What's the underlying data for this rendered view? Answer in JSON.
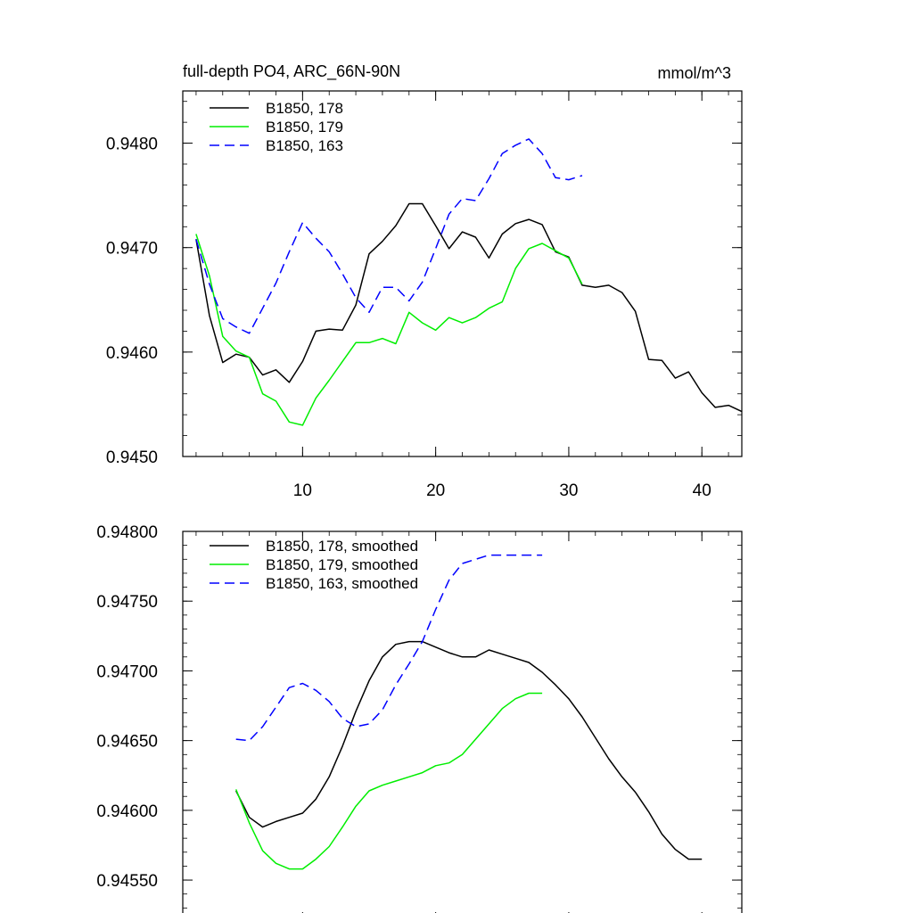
{
  "chart_data": [
    {
      "type": "line",
      "title": "full-depth PO4, ARC_66N-90N",
      "units": "mmol/m^3",
      "xlim": [
        1,
        43
      ],
      "ylim": [
        0.945,
        0.9485
      ],
      "x_ticks": [
        10,
        20,
        30,
        40
      ],
      "x_tick_labels": [
        "10",
        "20",
        "30",
        "40"
      ],
      "y_ticks": [
        0.945,
        0.946,
        0.947,
        0.948
      ],
      "y_tick_labels": [
        "0.9450",
        "0.9460",
        "0.9470",
        "0.9480"
      ],
      "x_minor_step": 2,
      "y_minor_step": 0.0002,
      "series": [
        {
          "name": "B1850, 178",
          "color": "#000000",
          "dash": "solid",
          "x": [
            2,
            3,
            4,
            5,
            6,
            7,
            8,
            9,
            10,
            11,
            12,
            13,
            14,
            15,
            16,
            17,
            18,
            19,
            20,
            21,
            22,
            23,
            24,
            25,
            26,
            27,
            28,
            29,
            30,
            31,
            32,
            33,
            34,
            35,
            36,
            37,
            38,
            39,
            40,
            41,
            42,
            43
          ],
          "values": [
            0.94708,
            0.94635,
            0.9459,
            0.94598,
            0.94595,
            0.94578,
            0.94583,
            0.94571,
            0.94591,
            0.9462,
            0.94622,
            0.94621,
            0.94645,
            0.94694,
            0.94706,
            0.94721,
            0.94742,
            0.94742,
            0.94721,
            0.94699,
            0.94715,
            0.9471,
            0.9469,
            0.94713,
            0.94723,
            0.94727,
            0.94722,
            0.94696,
            0.94691,
            0.94664,
            0.94662,
            0.94664,
            0.94657,
            0.94639,
            0.94593,
            0.94592,
            0.94575,
            0.94581,
            0.94561,
            0.94547,
            0.94549,
            0.94543
          ]
        },
        {
          "name": "B1850, 179",
          "color": "#00ee00",
          "dash": "solid",
          "x": [
            2,
            3,
            4,
            5,
            6,
            7,
            8,
            9,
            10,
            11,
            12,
            13,
            14,
            15,
            16,
            17,
            18,
            19,
            20,
            21,
            22,
            23,
            24,
            25,
            26,
            27,
            28,
            29,
            30,
            31
          ],
          "values": [
            0.94713,
            0.94673,
            0.94615,
            0.94601,
            0.94595,
            0.9456,
            0.94553,
            0.94533,
            0.9453,
            0.94556,
            0.94573,
            0.94591,
            0.94609,
            0.94609,
            0.94613,
            0.94608,
            0.94638,
            0.94628,
            0.94621,
            0.94633,
            0.94628,
            0.94633,
            0.94642,
            0.94648,
            0.9468,
            0.94699,
            0.94704,
            0.94697,
            0.9469,
            0.94665
          ]
        },
        {
          "name": "B1850, 163",
          "color": "#0000ff",
          "dash": "dashed",
          "x": [
            2,
            3,
            4,
            5,
            6,
            7,
            8,
            9,
            10,
            11,
            12,
            13,
            14,
            15,
            16,
            17,
            18,
            19,
            20,
            21,
            22,
            23,
            24,
            25,
            26,
            27,
            28,
            29,
            30,
            31
          ],
          "values": [
            0.94708,
            0.94665,
            0.94632,
            0.94624,
            0.94618,
            0.94642,
            0.94666,
            0.94696,
            0.94724,
            0.94709,
            0.94696,
            0.94675,
            0.94652,
            0.94638,
            0.94662,
            0.94662,
            0.94649,
            0.94667,
            0.94699,
            0.94732,
            0.94747,
            0.94745,
            0.94766,
            0.9479,
            0.94798,
            0.94804,
            0.9479,
            0.94767,
            0.94765,
            0.94769
          ]
        }
      ]
    },
    {
      "type": "line",
      "xlim": [
        1,
        43
      ],
      "ylim": [
        0.9452,
        0.948
      ],
      "x_ticks": [
        10,
        20,
        30,
        40
      ],
      "y_ticks": [
        0.9455,
        0.946,
        0.9465,
        0.947,
        0.9475,
        0.948
      ],
      "y_tick_labels": [
        "0.94550",
        "0.94600",
        "0.94650",
        "0.94700",
        "0.94750",
        "0.94800"
      ],
      "x_minor_step": 2,
      "y_minor_step": 0.0001,
      "series": [
        {
          "name": "B1850, 178, smoothed",
          "color": "#000000",
          "dash": "solid",
          "x": [
            5,
            6,
            7,
            8,
            9,
            10,
            11,
            12,
            13,
            14,
            15,
            16,
            17,
            18,
            19,
            20,
            21,
            22,
            23,
            24,
            25,
            26,
            27,
            28,
            29,
            30,
            31,
            32,
            33,
            34,
            35,
            36,
            37,
            38,
            39,
            40
          ],
          "values": [
            0.94614,
            0.94595,
            0.94588,
            0.94592,
            0.94595,
            0.94598,
            0.94608,
            0.94624,
            0.94646,
            0.94671,
            0.94693,
            0.9471,
            0.94719,
            0.94721,
            0.94721,
            0.94717,
            0.94713,
            0.9471,
            0.9471,
            0.94715,
            0.94712,
            0.94709,
            0.94706,
            0.94699,
            0.9469,
            0.9468,
            0.94667,
            0.94652,
            0.94637,
            0.94624,
            0.94613,
            0.94599,
            0.94583,
            0.94572,
            0.94565,
            0.94565
          ]
        },
        {
          "name": "B1850, 179, smoothed",
          "color": "#00ee00",
          "dash": "solid",
          "x": [
            5,
            6,
            7,
            8,
            9,
            10,
            11,
            12,
            13,
            14,
            15,
            16,
            17,
            18,
            19,
            20,
            21,
            22,
            23,
            24,
            25,
            26,
            27,
            28
          ],
          "values": [
            0.94615,
            0.94591,
            0.94571,
            0.94562,
            0.94558,
            0.94558,
            0.94565,
            0.94574,
            0.94588,
            0.94603,
            0.94614,
            0.94618,
            0.94621,
            0.94624,
            0.94627,
            0.94632,
            0.94634,
            0.9464,
            0.94651,
            0.94662,
            0.94673,
            0.9468,
            0.94684,
            0.94684
          ]
        },
        {
          "name": "B1850, 163, smoothed",
          "color": "#0000ff",
          "dash": "dashed",
          "x": [
            5,
            6,
            7,
            8,
            9,
            10,
            11,
            12,
            13,
            14,
            15,
            16,
            17,
            18,
            19,
            20,
            21,
            22,
            23,
            24,
            25,
            26,
            27,
            28
          ],
          "values": [
            0.94651,
            0.9465,
            0.9466,
            0.94674,
            0.94688,
            0.94691,
            0.94686,
            0.94678,
            0.94666,
            0.9466,
            0.94662,
            0.94672,
            0.9469,
            0.94705,
            0.94721,
            0.94744,
            0.94765,
            0.94777,
            0.9478,
            0.94783,
            0.94783,
            0.94783,
            0.94783,
            0.94783
          ]
        }
      ]
    }
  ]
}
